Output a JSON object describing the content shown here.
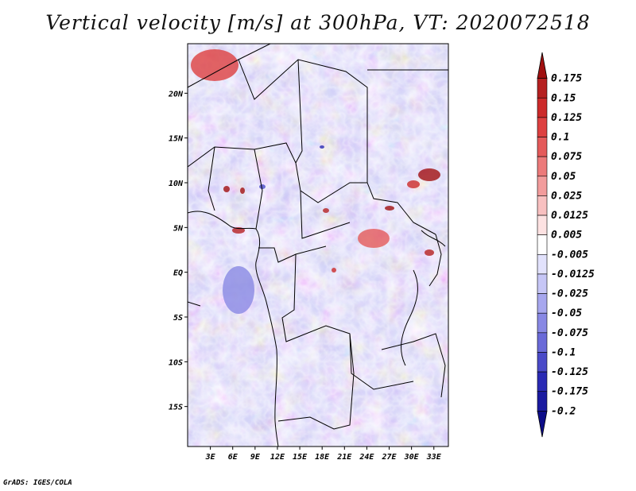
{
  "title": "Vertical velocity [m/s] at 300hPa, VT: 2020072518",
  "credit": "GrADS: IGES/COLA",
  "chart_data": {
    "type": "heatmap",
    "title": "Vertical velocity [m/s] at 300hPa, VT: 2020072518",
    "variable": "Vertical velocity",
    "units": "m/s",
    "level": "300hPa",
    "valid_time": "2020072518",
    "lon_range": [
      0,
      35
    ],
    "lat_range": [
      -20,
      25
    ],
    "x_ticks": [
      "3E",
      "6E",
      "9E",
      "12E",
      "15E",
      "18E",
      "21E",
      "24E",
      "27E",
      "30E",
      "33E"
    ],
    "x_tick_values": [
      3,
      6,
      9,
      12,
      15,
      18,
      21,
      24,
      27,
      30,
      33
    ],
    "y_ticks": [
      "20N",
      "15N",
      "10N",
      "5N",
      "EQ",
      "5S",
      "10S",
      "15S"
    ],
    "y_tick_values": [
      20,
      15,
      10,
      5,
      0,
      -5,
      -10,
      -15
    ],
    "colorbar_labels": [
      "0.175",
      "0.15",
      "0.125",
      "0.1",
      "0.075",
      "0.05",
      "0.025",
      "0.0125",
      "0.005",
      "-0.005",
      "-0.0125",
      "-0.025",
      "-0.05",
      "-0.075",
      "-0.1",
      "-0.125",
      "-0.175",
      "-0.2"
    ],
    "colorbar_colors": [
      "#a01010",
      "#b52020",
      "#cc2a2a",
      "#dd4040",
      "#e45a5a",
      "#ec7a7a",
      "#f29c9c",
      "#f8c0c0",
      "#fde2e2",
      "#ffffff",
      "#e2e2fc",
      "#c6c6f6",
      "#a7a7ee",
      "#8888e4",
      "#6a6ad8",
      "#4a4ac8",
      "#2a2ab4",
      "#1a1aa0",
      "#0c0c88"
    ],
    "legend_position": "right",
    "grid": false
  }
}
